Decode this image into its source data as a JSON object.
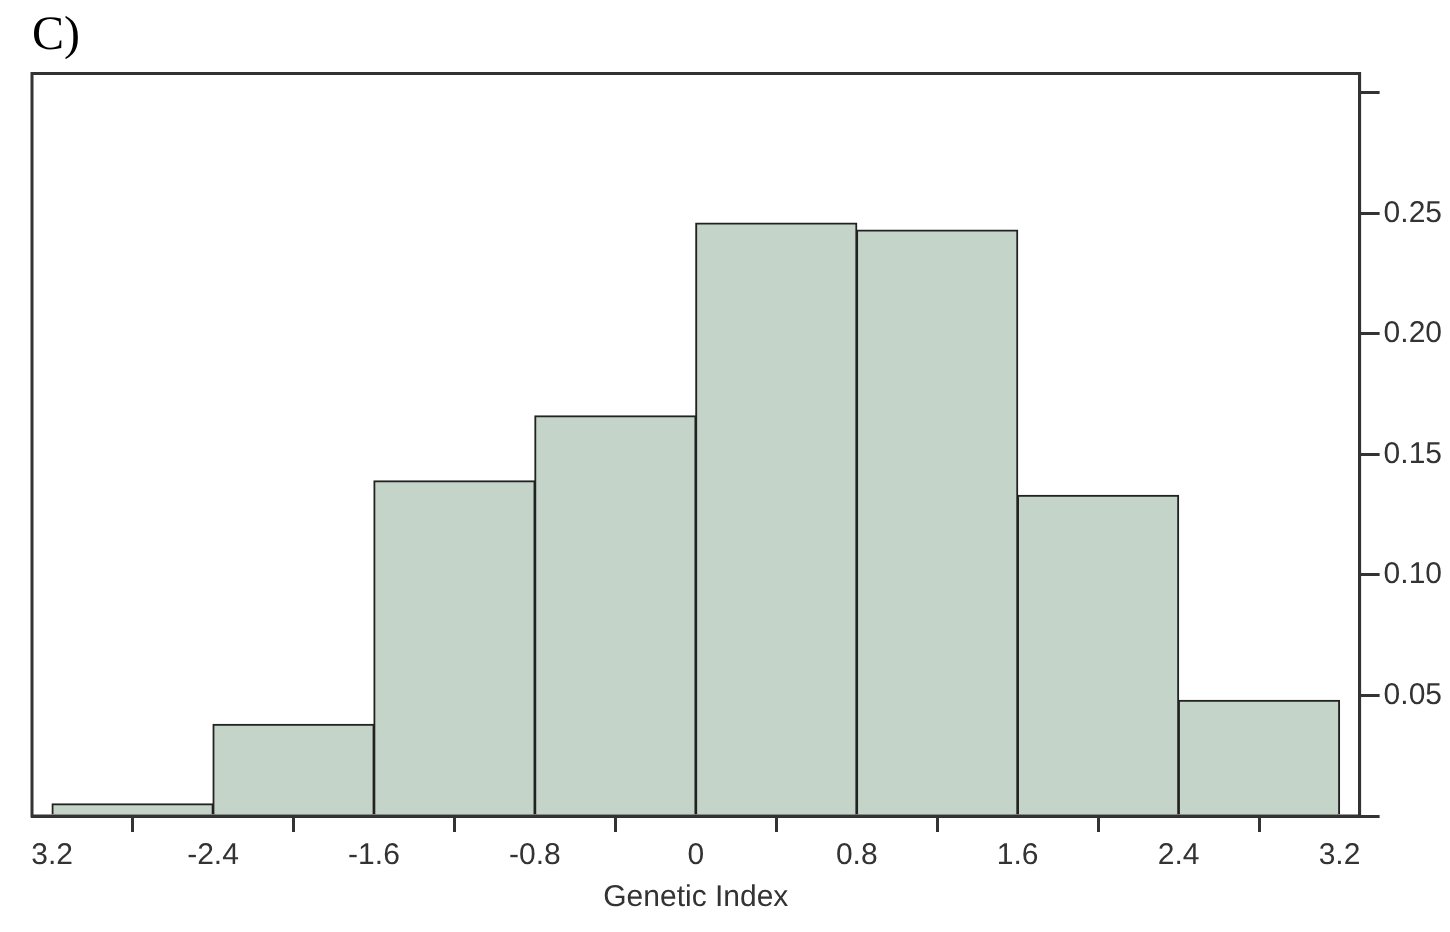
{
  "chart_data": {
    "type": "histogram",
    "title": "C)",
    "xlabel": "Genetic Index",
    "bins": [
      -3.2,
      -2.4,
      -1.6,
      -0.8,
      0,
      0.8,
      1.6,
      2.4,
      3.2
    ],
    "values": [
      0.005,
      0.038,
      0.139,
      0.166,
      0.246,
      0.243,
      0.133,
      0.048
    ],
    "color": "#c4d4c8",
    "xlim": [
      -3.3,
      3.3
    ],
    "xticks": [
      {
        "value": -3.2,
        "label": "3.2"
      },
      -2.4,
      -1.6,
      -0.8,
      0,
      0.8,
      1.6,
      2.4,
      3.2
    ],
    "ylim": [
      0,
      0.308
    ],
    "yticks": [
      {
        "value": 0,
        "label": null
      },
      0.05,
      {
        "value": 0.1,
        "label": "0.10"
      },
      0.15,
      {
        "value": 0.2,
        "label": "0.20"
      },
      0.25,
      {
        "value": 0.3,
        "label": null
      }
    ],
    "grid": false,
    "legend": false
  }
}
